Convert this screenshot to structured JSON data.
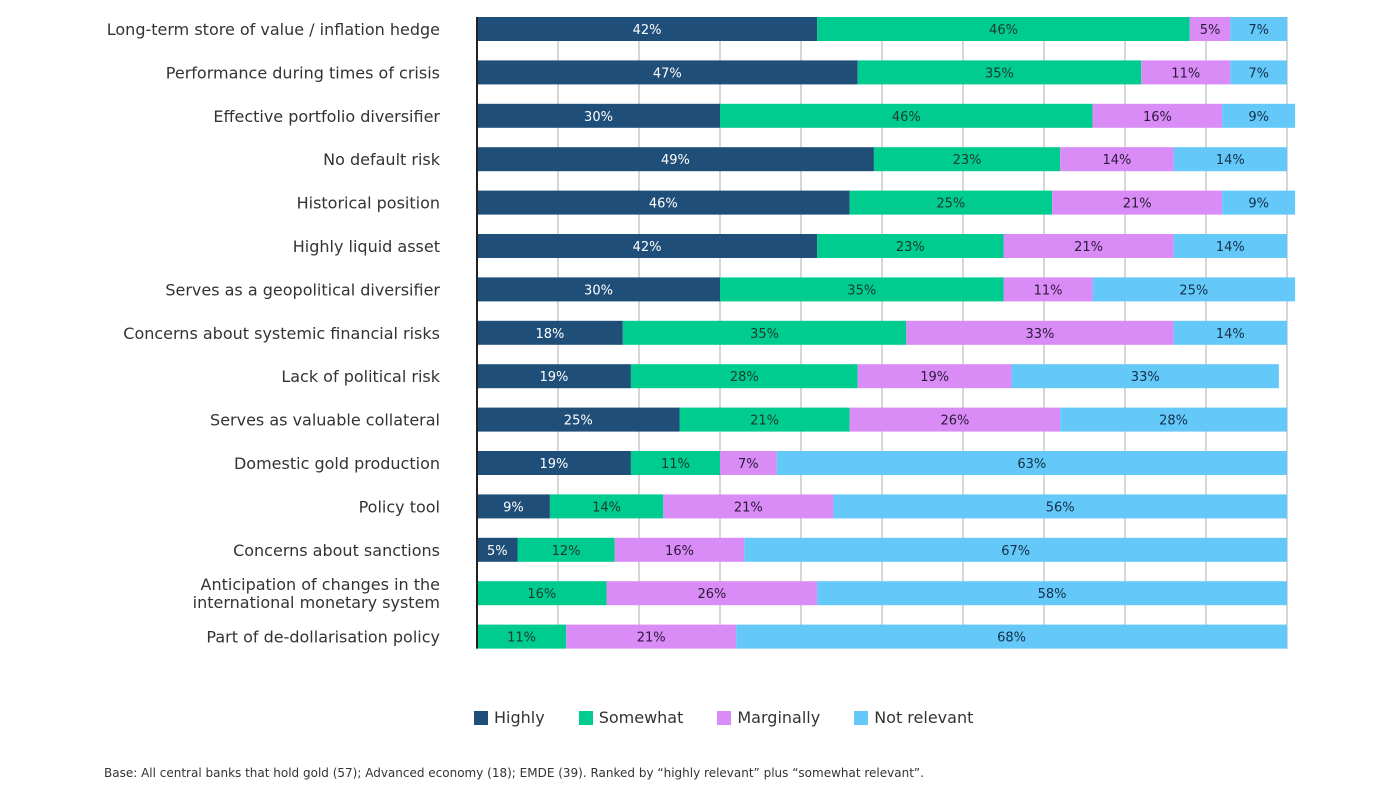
{
  "chart_data": {
    "type": "bar",
    "orientation": "horizontal",
    "stacked": true,
    "title": "",
    "xlabel": "",
    "ylabel": "",
    "xlim": [
      0,
      100
    ],
    "grid": true,
    "legend_position": "bottom",
    "categories": [
      "Long-term store of value / inflation hedge",
      "Performance during times of crisis",
      "Effective portfolio diversifier",
      "No default risk",
      "Historical position",
      "Highly liquid asset",
      "Serves as a geopolitical diversifier",
      "Concerns about systemic financial risks",
      "Lack of political risk",
      "Serves as valuable collateral",
      "Domestic gold production",
      "Policy tool",
      "Concerns about sanctions",
      "Anticipation of changes in the international monetary system",
      "Part of de-dollarisation policy"
    ],
    "category_lines": [
      [
        "Long-term store of value / inflation hedge"
      ],
      [
        "Performance during times of crisis"
      ],
      [
        "Effective portfolio diversifier"
      ],
      [
        "No default risk"
      ],
      [
        "Historical position"
      ],
      [
        "Highly liquid asset"
      ],
      [
        "Serves as a geopolitical diversifier"
      ],
      [
        "Concerns about systemic financial risks"
      ],
      [
        "Lack of political risk"
      ],
      [
        "Serves as valuable collateral"
      ],
      [
        "Domestic gold production"
      ],
      [
        "Policy tool"
      ],
      [
        "Concerns about sanctions"
      ],
      [
        "Anticipation of changes in the",
        "international monetary system"
      ],
      [
        "Part of de-dollarisation policy"
      ]
    ],
    "series": [
      {
        "name": "Highly",
        "color": "#1f4e79",
        "label_color": "#ffffff",
        "values": [
          42,
          47,
          30,
          49,
          46,
          42,
          30,
          18,
          19,
          25,
          19,
          9,
          5,
          0,
          0
        ]
      },
      {
        "name": "Somewhat",
        "color": "#00cc8f",
        "label_color": "#1a3a2a",
        "values": [
          46,
          35,
          46,
          23,
          25,
          23,
          35,
          35,
          28,
          21,
          11,
          14,
          12,
          16,
          11
        ]
      },
      {
        "name": "Marginally",
        "color": "#d98cf5",
        "label_color": "#2a1a3a",
        "values": [
          5,
          11,
          16,
          14,
          21,
          21,
          11,
          33,
          19,
          26,
          7,
          21,
          16,
          26,
          21
        ]
      },
      {
        "name": "Not relevant",
        "color": "#64c8f8",
        "label_color": "#12304a",
        "values": [
          7,
          7,
          9,
          14,
          9,
          14,
          25,
          14,
          33,
          28,
          63,
          56,
          67,
          58,
          68
        ]
      }
    ],
    "value_suffix": "%"
  },
  "legend": [
    {
      "label": "Highly",
      "color": "#1f4e79"
    },
    {
      "label": "Somewhat",
      "color": "#00cc8f"
    },
    {
      "label": "Marginally",
      "color": "#d98cf5"
    },
    {
      "label": "Not relevant",
      "color": "#64c8f8"
    }
  ],
  "footnote": "Base: All central banks that hold gold (57); Advanced economy (18); EMDE (39). Ranked by “highly relevant” plus “somewhat relevant”."
}
